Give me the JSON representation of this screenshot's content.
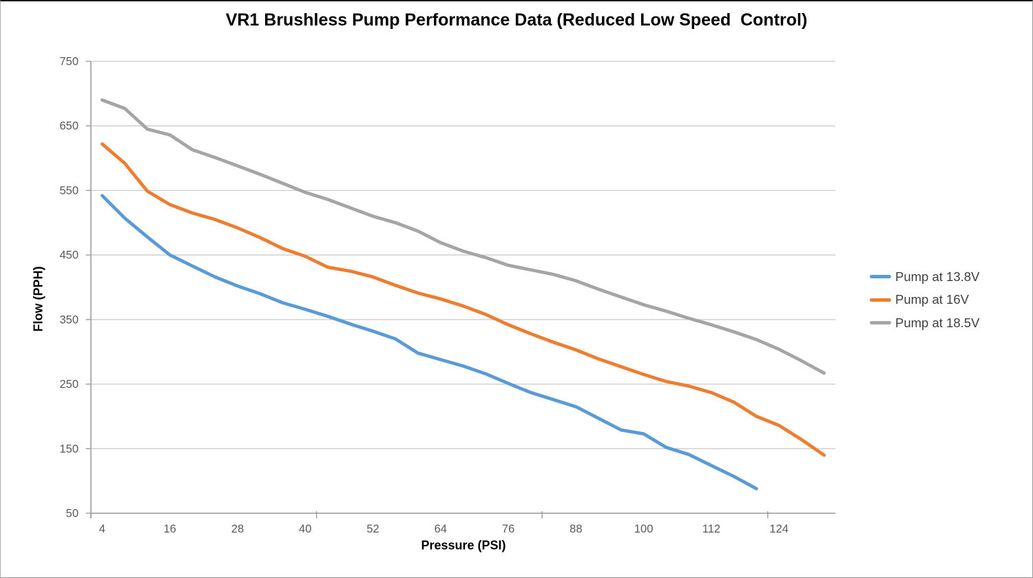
{
  "chart_data": {
    "type": "line",
    "title": "VR1 Brushless Pump Performance Data (Reduced Low Speed  Control)",
    "xlabel": "Pressure (PSI)",
    "ylabel": "Flow (PPH)",
    "x_ticks": [
      4,
      16,
      28,
      40,
      52,
      64,
      76,
      88,
      100,
      112,
      124
    ],
    "y_ticks": [
      750,
      650,
      550,
      450,
      350,
      250,
      150,
      50
    ],
    "xlim": [
      2,
      134
    ],
    "ylim": [
      50,
      750
    ],
    "grid": "horizontal",
    "legend_position": "right-middle",
    "colors": {
      "gridline": "#c9c9c9",
      "axis": "#9c9c9c",
      "tick_label": "#595959",
      "title": "#000000"
    },
    "series": [
      {
        "name": "Pump at 13.8V",
        "color": "#5B9BD5",
        "x": [
          4,
          8,
          12,
          16,
          20,
          24,
          28,
          32,
          36,
          40,
          44,
          48,
          52,
          56,
          60,
          64,
          68,
          72,
          76,
          80,
          84,
          88,
          92,
          96,
          100,
          104,
          108,
          112,
          116,
          120
        ],
        "values": [
          542,
          507,
          478,
          450,
          433,
          416,
          402,
          390,
          376,
          366,
          355,
          343,
          332,
          320,
          298,
          288,
          278,
          266,
          251,
          237,
          226,
          215,
          197,
          179,
          173,
          152,
          141,
          124,
          107,
          88
        ]
      },
      {
        "name": "Pump at 16V",
        "color": "#ED7D31",
        "x": [
          4,
          8,
          12,
          16,
          20,
          24,
          28,
          32,
          36,
          40,
          44,
          48,
          52,
          56,
          60,
          64,
          68,
          72,
          76,
          80,
          84,
          88,
          92,
          96,
          100,
          104,
          108,
          112,
          116,
          120,
          124,
          128,
          132
        ],
        "values": [
          622,
          592,
          549,
          528,
          515,
          505,
          492,
          477,
          460,
          448,
          431,
          425,
          416,
          403,
          391,
          382,
          371,
          358,
          342,
          328,
          315,
          303,
          289,
          277,
          265,
          254,
          247,
          237,
          222,
          200,
          186,
          164,
          140
        ]
      },
      {
        "name": "Pump at 18.5V",
        "color": "#A5A5A5",
        "x": [
          4,
          8,
          12,
          16,
          20,
          24,
          28,
          32,
          36,
          40,
          44,
          48,
          52,
          56,
          60,
          64,
          68,
          72,
          76,
          80,
          84,
          88,
          92,
          96,
          100,
          104,
          108,
          112,
          116,
          120,
          124,
          128,
          132
        ],
        "values": [
          690,
          677,
          645,
          636,
          613,
          601,
          588,
          575,
          561,
          547,
          536,
          523,
          510,
          500,
          487,
          469,
          456,
          446,
          434,
          427,
          420,
          410,
          397,
          385,
          373,
          363,
          352,
          342,
          331,
          319,
          304,
          286,
          267
        ]
      }
    ]
  }
}
